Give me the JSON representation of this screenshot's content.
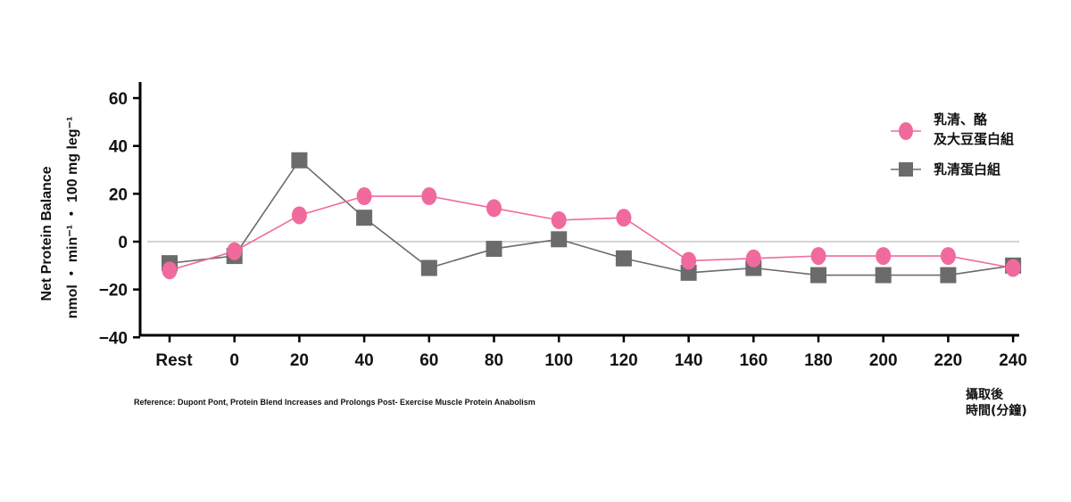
{
  "chart_data": {
    "type": "line",
    "categories": [
      "Rest",
      "0",
      "20",
      "40",
      "60",
      "80",
      "100",
      "120",
      "140",
      "160",
      "180",
      "200",
      "220",
      "240"
    ],
    "ylabel_line1": "Net Protein Balance",
    "ylabel_line2": "nmol ・ min⁻¹ ・ 100 mg leg⁻¹",
    "xunit_line1": "攝取後",
    "xunit_line2": "時間(分鐘)",
    "ylim": [
      -40,
      65
    ],
    "yticks": [
      "60",
      "40",
      "20",
      "0",
      "−20",
      "−40"
    ],
    "ytick_values": [
      60,
      40,
      20,
      0,
      -20,
      -40
    ],
    "series": [
      {
        "name_line1": "乳清、酪",
        "name_line2": "及大豆蛋白組",
        "marker": "circle",
        "color": "#f06a9e",
        "values": [
          -12,
          -4,
          11,
          19,
          19,
          14,
          9,
          10,
          -8,
          -7,
          -6,
          -6,
          -6,
          -11
        ]
      },
      {
        "name_line1": "乳清蛋白組",
        "name_line2": "",
        "marker": "square",
        "color": "#6b6b6b",
        "values": [
          -9,
          -6,
          34,
          10,
          -11,
          -3,
          1,
          -7,
          -13,
          -11,
          -14,
          -14,
          -14,
          -10
        ]
      }
    ],
    "reference": "Reference: Dupont Pont, Protein Blend Increases  and Prolongs Post- Exercise Muscle Protein Anabolism"
  }
}
